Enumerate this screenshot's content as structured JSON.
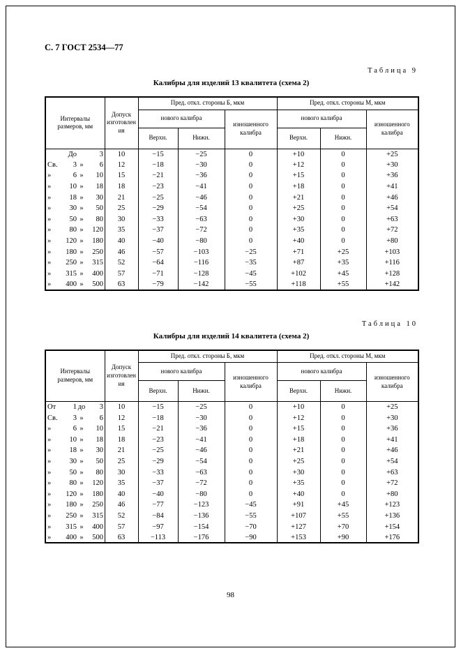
{
  "page": {
    "doc_header": "С. 7 ГОСТ 2534—77",
    "page_number": "98"
  },
  "tables": [
    {
      "label": "Таблица 9",
      "title": "Калибры для изделий 13 квалитета (схема 2)",
      "headers": {
        "intervals": "Интервалы размеров, мм",
        "tolerance": "Допуск изготовления",
        "side_b": "Пред. откл. стороны Б, мкм",
        "side_m": "Пред. откл. стороны М, мкм",
        "new_caliber": "нового калибра",
        "worn_caliber": "изношенного калибра",
        "upper": "Верхн.",
        "lower": "Нижн."
      },
      "rows": [
        {
          "interval": [
            "",
            "До",
            "",
            "3"
          ],
          "values": [
            "10",
            "−15",
            "−25",
            "0",
            "+10",
            "0",
            "+25"
          ]
        },
        {
          "interval": [
            "Св.",
            "3",
            "»",
            "6"
          ],
          "values": [
            "12",
            "−18",
            "−30",
            "0",
            "+12",
            "0",
            "+30"
          ]
        },
        {
          "interval": [
            "»",
            "6",
            "»",
            "10"
          ],
          "values": [
            "15",
            "−21",
            "−36",
            "0",
            "+15",
            "0",
            "+36"
          ]
        },
        {
          "interval": [
            "»",
            "10",
            "»",
            "18"
          ],
          "values": [
            "18",
            "−23",
            "−41",
            "0",
            "+18",
            "0",
            "+41"
          ]
        },
        {
          "interval": [
            "»",
            "18",
            "»",
            "30"
          ],
          "values": [
            "21",
            "−25",
            "−46",
            "0",
            "+21",
            "0",
            "+46"
          ]
        },
        {
          "interval": [
            "»",
            "30",
            "»",
            "50"
          ],
          "values": [
            "25",
            "−29",
            "−54",
            "0",
            "+25",
            "0",
            "+54"
          ]
        },
        {
          "interval": [
            "»",
            "50",
            "»",
            "80"
          ],
          "values": [
            "30",
            "−33",
            "−63",
            "0",
            "+30",
            "0",
            "+63"
          ]
        },
        {
          "interval": [
            "»",
            "80",
            "»",
            "120"
          ],
          "values": [
            "35",
            "−37",
            "−72",
            "0",
            "+35",
            "0",
            "+72"
          ]
        },
        {
          "interval": [
            "»",
            "120",
            "»",
            "180"
          ],
          "values": [
            "40",
            "−40",
            "−80",
            "0",
            "+40",
            "0",
            "+80"
          ]
        },
        {
          "interval": [
            "»",
            "180",
            "»",
            "250"
          ],
          "values": [
            "46",
            "−57",
            "−103",
            "−25",
            "+71",
            "+25",
            "+103"
          ]
        },
        {
          "interval": [
            "»",
            "250",
            "»",
            "315"
          ],
          "values": [
            "52",
            "−64",
            "−116",
            "−35",
            "+87",
            "+35",
            "+116"
          ]
        },
        {
          "interval": [
            "»",
            "315",
            "»",
            "400"
          ],
          "values": [
            "57",
            "−71",
            "−128",
            "−45",
            "+102",
            "+45",
            "+128"
          ]
        },
        {
          "interval": [
            "»",
            "400",
            "»",
            "500"
          ],
          "values": [
            "63",
            "−79",
            "−142",
            "−55",
            "+118",
            "+55",
            "+142"
          ]
        }
      ]
    },
    {
      "label": "Таблица 10",
      "title": "Калибры для изделий 14 квалитета (схема 2)",
      "headers": {
        "intervals": "Интервалы размеров, мм",
        "tolerance": "Допуск изготовления",
        "side_b": "Пред. откл. стороны Б, мкм",
        "side_m": "Пред. откл. стороны М, мкм",
        "new_caliber": "нового калибра",
        "worn_caliber": "изношенного калибра",
        "upper": "Верхн.",
        "lower": "Нижн."
      },
      "rows": [
        {
          "interval": [
            "От",
            "1",
            "до",
            "3"
          ],
          "values": [
            "10",
            "−15",
            "−25",
            "0",
            "+10",
            "0",
            "+25"
          ]
        },
        {
          "interval": [
            "Св.",
            "3",
            "»",
            "6"
          ],
          "values": [
            "12",
            "−18",
            "−30",
            "0",
            "+12",
            "0",
            "+30"
          ]
        },
        {
          "interval": [
            "»",
            "6",
            "»",
            "10"
          ],
          "values": [
            "15",
            "−21",
            "−36",
            "0",
            "+15",
            "0",
            "+36"
          ]
        },
        {
          "interval": [
            "»",
            "10",
            "»",
            "18"
          ],
          "values": [
            "18",
            "−23",
            "−41",
            "0",
            "+18",
            "0",
            "+41"
          ]
        },
        {
          "interval": [
            "»",
            "18",
            "»",
            "30"
          ],
          "values": [
            "21",
            "−25",
            "−46",
            "0",
            "+21",
            "0",
            "+46"
          ]
        },
        {
          "interval": [
            "»",
            "30",
            "»",
            "50"
          ],
          "values": [
            "25",
            "−29",
            "−54",
            "0",
            "+25",
            "0",
            "+54"
          ]
        },
        {
          "interval": [
            "»",
            "50",
            "»",
            "80"
          ],
          "values": [
            "30",
            "−33",
            "−63",
            "0",
            "+30",
            "0",
            "+63"
          ]
        },
        {
          "interval": [
            "»",
            "80",
            "»",
            "120"
          ],
          "values": [
            "35",
            "−37",
            "−72",
            "0",
            "+35",
            "0",
            "+72"
          ]
        },
        {
          "interval": [
            "»",
            "120",
            "»",
            "180"
          ],
          "values": [
            "40",
            "−40",
            "−80",
            "0",
            "+40",
            "0",
            "+80"
          ]
        },
        {
          "interval": [
            "»",
            "180",
            "»",
            "250"
          ],
          "values": [
            "46",
            "−77",
            "−123",
            "−45",
            "+91",
            "+45",
            "+123"
          ]
        },
        {
          "interval": [
            "»",
            "250",
            "»",
            "315"
          ],
          "values": [
            "52",
            "−84",
            "−136",
            "−55",
            "+107",
            "+55",
            "+136"
          ]
        },
        {
          "interval": [
            "»",
            "315",
            "»",
            "400"
          ],
          "values": [
            "57",
            "−97",
            "−154",
            "−70",
            "+127",
            "+70",
            "+154"
          ]
        },
        {
          "interval": [
            "»",
            "400",
            "»",
            "500"
          ],
          "values": [
            "63",
            "−113",
            "−176",
            "−90",
            "+153",
            "+90",
            "+176"
          ]
        }
      ]
    }
  ]
}
